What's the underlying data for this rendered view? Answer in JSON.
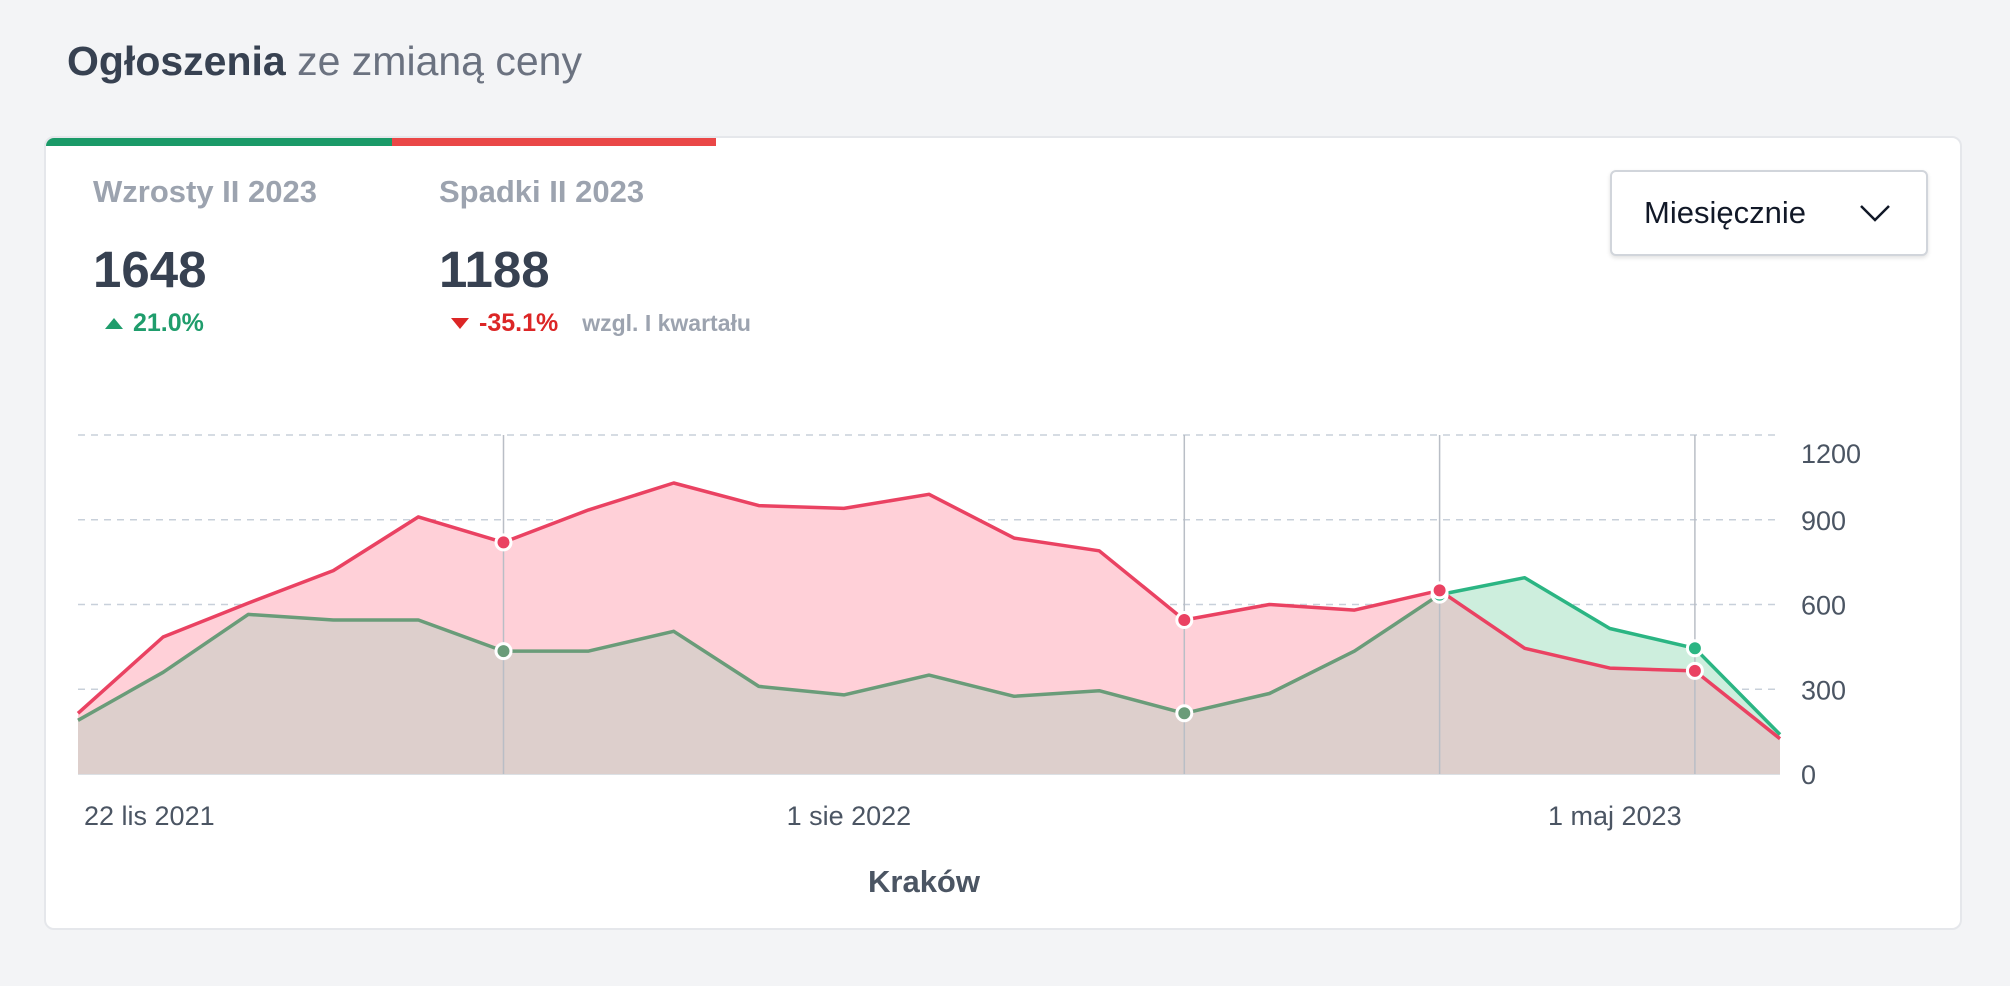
{
  "header": {
    "title_strong": "Ogłoszenia",
    "title_rest": " ze zmianą ceny"
  },
  "stats": {
    "increases": {
      "label": "Wzrosty II 2023",
      "value": "1648",
      "change": "21.0%"
    },
    "decreases": {
      "label": "Spadki II 2023",
      "value": "1188",
      "change": "-35.1%",
      "note": "wzgl. I kwartału"
    }
  },
  "period_select": {
    "value": "Miesięcznie",
    "icon": "chevron-down-icon"
  },
  "colors": {
    "increase": "#2bb583",
    "increase_line_pre": "#6a9c79",
    "decrease": "#ea4262",
    "decrease_fill": "#ffd0d8",
    "increase_fill": "#cdeedd",
    "overlap_fill": "#ddcfcc",
    "bar_green": "#1a9a68",
    "bar_red": "#ea4747"
  },
  "chart_data": {
    "type": "area",
    "x_axis_title": "Kraków",
    "x_tick_labels": [
      {
        "label": "22 lis 2021",
        "index": 0
      },
      {
        "label": "1 sie 2022",
        "index": 9
      },
      {
        "label": "1 maj 2023",
        "index": 18
      }
    ],
    "ylim": [
      0,
      1200
    ],
    "y_ticks": [
      0,
      300,
      600,
      900,
      1200
    ],
    "grid": true,
    "marked_indices": [
      5,
      13,
      16,
      19
    ],
    "series": [
      {
        "name": "Wzrosty",
        "values": [
          190,
          360,
          565,
          545,
          545,
          435,
          435,
          505,
          310,
          280,
          350,
          275,
          295,
          215,
          285,
          435,
          635,
          695,
          515,
          445,
          140
        ]
      },
      {
        "name": "Spadki",
        "values": [
          215,
          485,
          605,
          720,
          910,
          820,
          935,
          1030,
          950,
          940,
          990,
          835,
          790,
          545,
          600,
          580,
          650,
          445,
          375,
          365,
          125
        ]
      }
    ]
  }
}
